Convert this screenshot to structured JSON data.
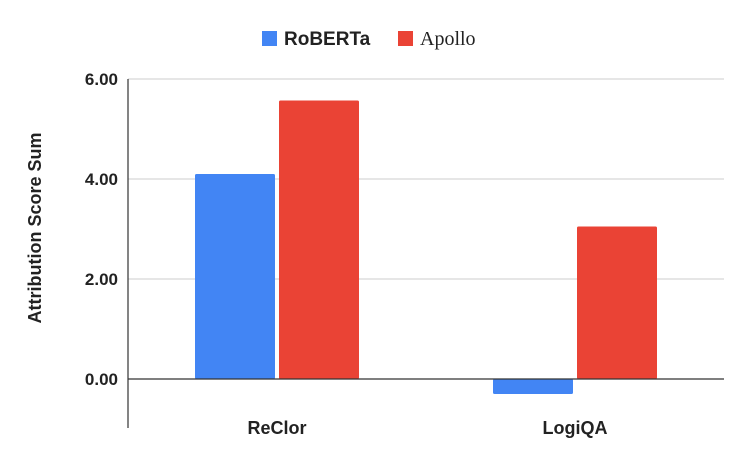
{
  "chart_data": {
    "type": "bar",
    "categories": [
      "ReClor",
      "LogiQA"
    ],
    "series": [
      {
        "name": "RoBERTa",
        "values": [
          4.1,
          -0.3
        ],
        "color": "#4285F4"
      },
      {
        "name": "Apollo",
        "values": [
          5.57,
          3.05
        ],
        "color": "#EA4335"
      }
    ],
    "ylabel": "Attribution Score Sum",
    "xlabel": "",
    "ylim": [
      -0.5,
      6.0
    ],
    "yticks": [
      "0.00",
      "2.00",
      "4.00",
      "6.00"
    ],
    "ytick_values": [
      0,
      2,
      4,
      6
    ],
    "grid": true,
    "legend_position": "top-center"
  }
}
